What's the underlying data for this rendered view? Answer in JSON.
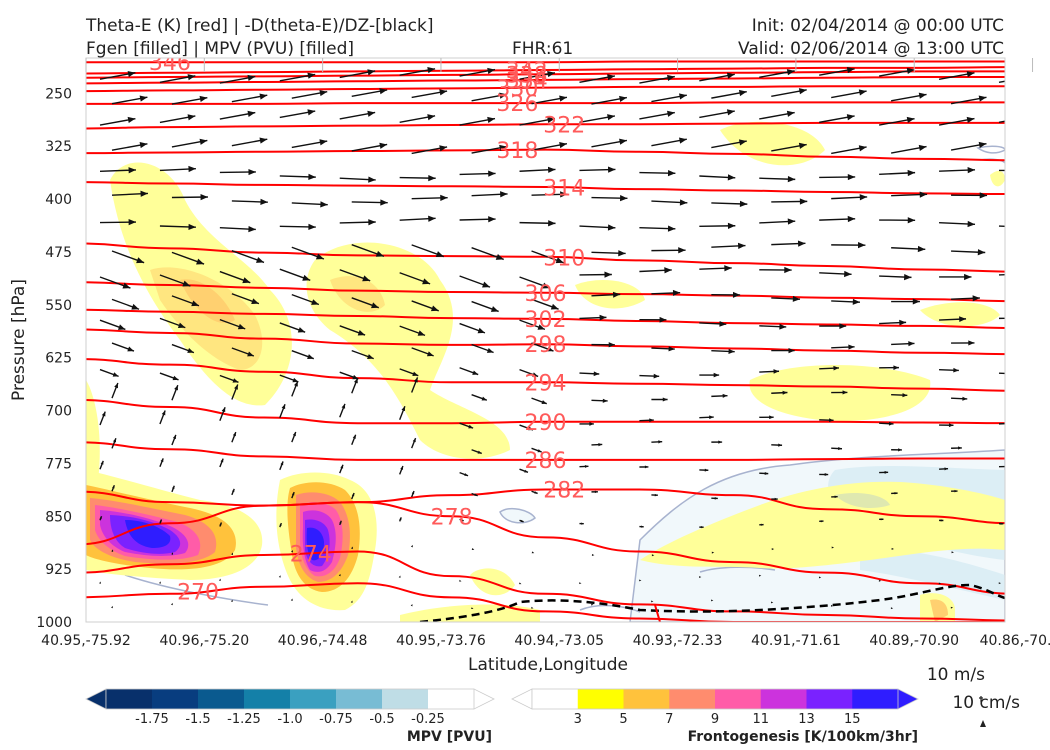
{
  "header": {
    "title_left_1": "Theta-E (K) [red] | -D(theta-E)/DZ-[black]",
    "title_left_2": "Fgen [filled] | MPV (PVU) [filled]",
    "title_center": "FHR:61",
    "title_right_1": "Init: 02/04/2014 @ 00:00 UTC",
    "title_right_2": "Valid: 02/06/2014 @ 13:00 UTC"
  },
  "chart_data": {
    "type": "cross-section",
    "xlabel": "Latitude,Longitude",
    "ylabel": "Pressure [hPa]",
    "x_ticks": [
      "40.95,-75.92",
      "40.96,-75.20",
      "40.96,-74.48",
      "40.95,-73.76",
      "40.94,-73.05",
      "40.93,-72.33",
      "40.91,-71.61",
      "40.89,-70.90",
      "40.86,-70.1"
    ],
    "y_ticks": [
      250,
      325,
      400,
      475,
      550,
      625,
      700,
      775,
      850,
      925,
      1000
    ],
    "ylim": [
      200,
      1000
    ],
    "y_inverted": true,
    "theta_e_contours": [
      {
        "value": "346",
        "levels": [
          206,
          206,
          206,
          206,
          206,
          206,
          205,
          205,
          205,
          205,
          205
        ]
      },
      {
        "value": "342",
        "levels": [
          222,
          221,
          220,
          219,
          218,
          217,
          216,
          215,
          214,
          214,
          213
        ]
      },
      {
        "value": "338",
        "levels": [
          228,
          227,
          226,
          225,
          224,
          223,
          222,
          221,
          220,
          219,
          219
        ]
      },
      {
        "value": "334",
        "levels": [
          236,
          235,
          234,
          233,
          232,
          231,
          230,
          229,
          228,
          227,
          227
        ]
      },
      {
        "value": "330",
        "levels": [
          247,
          246,
          245,
          244,
          243,
          242,
          241,
          241,
          240,
          240,
          240
        ]
      },
      {
        "value": "326",
        "levels": [
          265,
          265,
          265,
          264,
          264,
          264,
          264,
          263,
          263,
          263,
          263
        ]
      },
      {
        "value": "322",
        "levels": [
          300,
          298,
          297,
          296,
          295,
          294,
          294,
          293,
          292,
          292,
          292
        ]
      },
      {
        "value": "318",
        "levels": [
          335,
          334,
          333,
          332,
          331,
          330,
          333,
          336,
          340,
          343,
          345
        ]
      },
      {
        "value": "314",
        "levels": [
          376,
          378,
          380,
          381,
          382,
          383,
          386,
          388,
          390,
          392,
          393
        ]
      },
      {
        "value": "310",
        "levels": [
          463,
          470,
          476,
          480,
          481,
          482,
          487,
          491,
          495,
          500,
          503
        ]
      },
      {
        "value": "306",
        "levels": [
          518,
          522,
          526,
          530,
          532,
          533,
          535,
          537,
          540,
          542,
          545
        ]
      },
      {
        "value": "302",
        "levels": [
          557,
          560,
          563,
          566,
          569,
          570,
          573,
          576,
          578,
          580,
          583
        ]
      },
      {
        "value": "298",
        "levels": [
          585,
          590,
          598,
          605,
          607,
          606,
          609,
          612,
          615,
          618,
          620
        ]
      },
      {
        "value": "294",
        "levels": [
          627,
          635,
          645,
          654,
          660,
          660,
          662,
          664,
          666,
          669,
          672
        ]
      },
      {
        "value": "290",
        "levels": [
          685,
          695,
          710,
          718,
          718,
          716,
          716,
          716,
          716,
          717,
          718
        ]
      },
      {
        "value": "286",
        "levels": [
          745,
          755,
          765,
          770,
          770,
          770,
          770,
          770,
          769,
          768,
          768
        ]
      },
      {
        "value": "282",
        "levels": [
          815,
          830,
          835,
          830,
          820,
          812,
          812,
          820,
          840,
          850,
          860
        ]
      },
      {
        "value": "278",
        "levels": [
          890,
          860,
          835,
          830,
          850,
          880,
          900,
          915,
          930,
          945,
          960
        ]
      },
      {
        "value": "274",
        "levels": [
          930,
          918,
          905,
          900,
          935,
          960,
          975,
          985,
          990,
          995,
          998
        ]
      },
      {
        "value": "270",
        "levels": [
          965,
          960,
          950,
          945,
          965,
          985,
          995,
          1000,
          1000,
          1000,
          1000
        ]
      }
    ],
    "fgen_colorbar": {
      "label": "Frontogenesis [K/100km/3hr]",
      "ticks": [
        "3",
        "5",
        "7",
        "9",
        "11",
        "13",
        "15"
      ],
      "colors": [
        "#ffff00",
        "#ffc23c",
        "#ff8c6e",
        "#ff5ca8",
        "#cc33dd",
        "#7a22ff",
        "#2f1dff"
      ]
    },
    "mpv_colorbar": {
      "label": "MPV [PVU]",
      "ticks": [
        "-1.75",
        "-1.5",
        "-1.25",
        "-1.0",
        "-0.75",
        "-0.5",
        "-0.25"
      ],
      "colors": [
        "#08306b",
        "#083d7f",
        "#0a5a8f",
        "#1480a8",
        "#3aa0c0",
        "#78bcd4",
        "#bfdde6",
        "#ffffff"
      ]
    },
    "line_colors": {
      "theta_e": "#ff0000",
      "ddz": "#000000",
      "mpv_outline": "#9aa6c8",
      "wind": "#111111"
    }
  },
  "reference_vector": {
    "label_1": "10 m/s",
    "label_2": "10 cm/s"
  }
}
